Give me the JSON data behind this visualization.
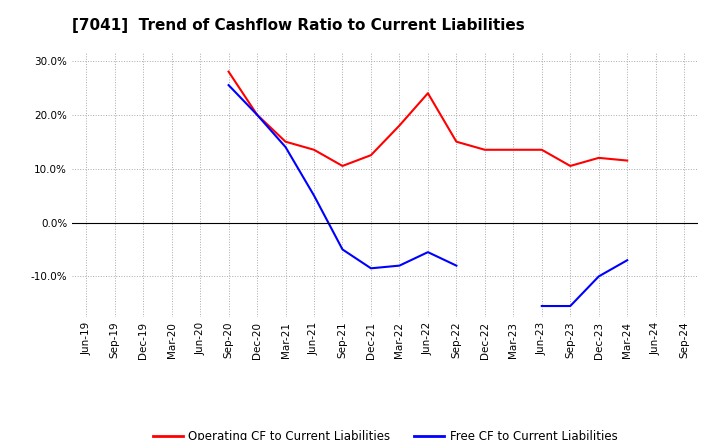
{
  "title": "[7041]  Trend of Cashflow Ratio to Current Liabilities",
  "x_labels": [
    "Jun-19",
    "Sep-19",
    "Dec-19",
    "Mar-20",
    "Jun-20",
    "Sep-20",
    "Dec-20",
    "Mar-21",
    "Jun-21",
    "Sep-21",
    "Dec-21",
    "Mar-22",
    "Jun-22",
    "Sep-22",
    "Dec-22",
    "Mar-23",
    "Jun-23",
    "Sep-23",
    "Dec-23",
    "Mar-24",
    "Jun-24",
    "Sep-24"
  ],
  "operating_cf": [
    null,
    null,
    null,
    null,
    null,
    28.0,
    20.0,
    15.0,
    13.5,
    10.5,
    12.5,
    18.0,
    24.0,
    15.0,
    13.5,
    13.5,
    13.5,
    10.5,
    12.0,
    11.5,
    null,
    null
  ],
  "free_cf": [
    null,
    null,
    null,
    null,
    null,
    25.5,
    20.0,
    14.0,
    5.0,
    -5.0,
    -8.5,
    -8.0,
    -5.5,
    -8.0,
    null,
    null,
    -15.5,
    -15.5,
    -10.0,
    -7.0,
    null,
    null
  ],
  "operating_cf_color": "#FF0000",
  "free_cf_color": "#0000FF",
  "ylim": [
    -17.5,
    31.5
  ],
  "yticks": [
    -10.0,
    0.0,
    10.0,
    20.0,
    30.0
  ],
  "ytick_labels": [
    "-10.0%",
    "0.0%",
    "10.0%",
    "20.0%",
    "30.0%"
  ],
  "legend_op": "Operating CF to Current Liabilities",
  "legend_free": "Free CF to Current Liabilities",
  "bg_color": "#FFFFFF",
  "plot_bg_color": "#FFFFFF",
  "grid_color": "#AAAAAA",
  "line_width": 1.5,
  "title_fontsize": 11,
  "tick_fontsize": 7.5,
  "legend_fontsize": 8.5
}
